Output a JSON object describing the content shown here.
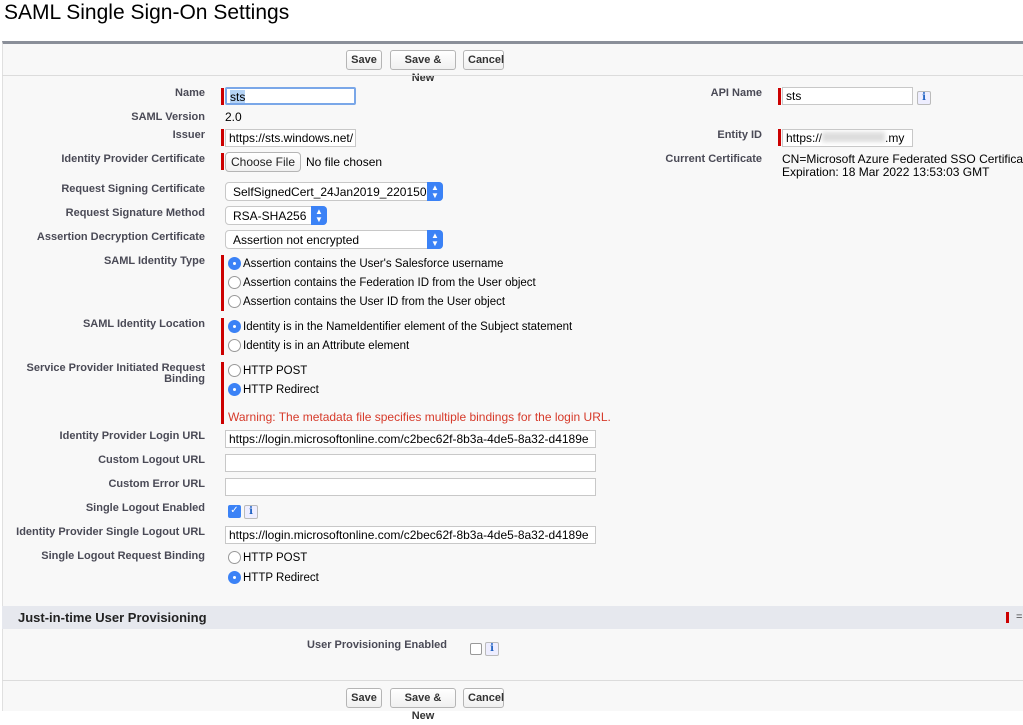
{
  "title": "SAML Single Sign-On Settings",
  "buttons": {
    "save": "Save",
    "save_new": "Save & New",
    "cancel": "Cancel"
  },
  "fields": {
    "name": {
      "label": "Name",
      "value": "sts"
    },
    "saml_version": {
      "label": "SAML Version",
      "value": "2.0"
    },
    "issuer": {
      "label": "Issuer",
      "value": "https://sts.windows.net/"
    },
    "idp_cert": {
      "label": "Identity Provider Certificate",
      "button": "Choose File",
      "status": "No file chosen"
    },
    "req_signing_cert": {
      "label": "Request Signing Certificate",
      "value": "SelfSignedCert_24Jan2019_220150"
    },
    "req_sig_method": {
      "label": "Request Signature Method",
      "value": "RSA-SHA256"
    },
    "assertion_decrypt": {
      "label": "Assertion Decryption Certificate",
      "value": "Assertion not encrypted"
    },
    "identity_type": {
      "label": "SAML Identity Type",
      "options": [
        "Assertion contains the User's Salesforce username",
        "Assertion contains the Federation ID from the User object",
        "Assertion contains the User ID from the User object"
      ],
      "selected": 0
    },
    "identity_location": {
      "label": "SAML Identity Location",
      "options": [
        "Identity is in the NameIdentifier element of the Subject statement",
        "Identity is in an Attribute element"
      ],
      "selected": 0
    },
    "sp_binding": {
      "label1": "Service Provider Initiated Request",
      "label2": "Binding",
      "options": [
        "HTTP POST",
        "HTTP Redirect"
      ],
      "selected": 1,
      "warning": "Warning: The metadata file specifies multiple bindings for the login URL."
    },
    "idp_login_url": {
      "label": "Identity Provider Login URL",
      "value": "https://login.microsoftonline.com/c2bec62f-8b3a-4de5-8a32-d4189e"
    },
    "custom_logout_url": {
      "label": "Custom Logout URL",
      "value": ""
    },
    "custom_error_url": {
      "label": "Custom Error URL",
      "value": ""
    },
    "single_logout_enabled": {
      "label": "Single Logout Enabled",
      "checked": true
    },
    "idp_single_logout_url": {
      "label": "Identity Provider Single Logout URL",
      "value": "https://login.microsoftonline.com/c2bec62f-8b3a-4de5-8a32-d4189e"
    },
    "slo_binding": {
      "label": "Single Logout Request Binding",
      "options": [
        "HTTP POST",
        "HTTP Redirect"
      ],
      "selected": 1
    },
    "api_name": {
      "label": "API Name",
      "value": "sts"
    },
    "entity_id": {
      "label": "Entity ID",
      "value_prefix": "https://",
      "value_suffix": ".my"
    },
    "current_cert": {
      "label": "Current Certificate",
      "line1": "CN=Microsoft Azure Federated SSO Certificate",
      "line2": "Expiration: 18 Mar 2022 13:53:03 GMT"
    }
  },
  "jit": {
    "title": "Just-in-time User Provisioning",
    "user_prov_label": "User Provisioning Enabled",
    "user_prov_checked": false
  },
  "info_glyph": "i",
  "colors": {
    "required": "#cc0000",
    "accent": "#3b82f6",
    "warning": "#d63a2a"
  }
}
